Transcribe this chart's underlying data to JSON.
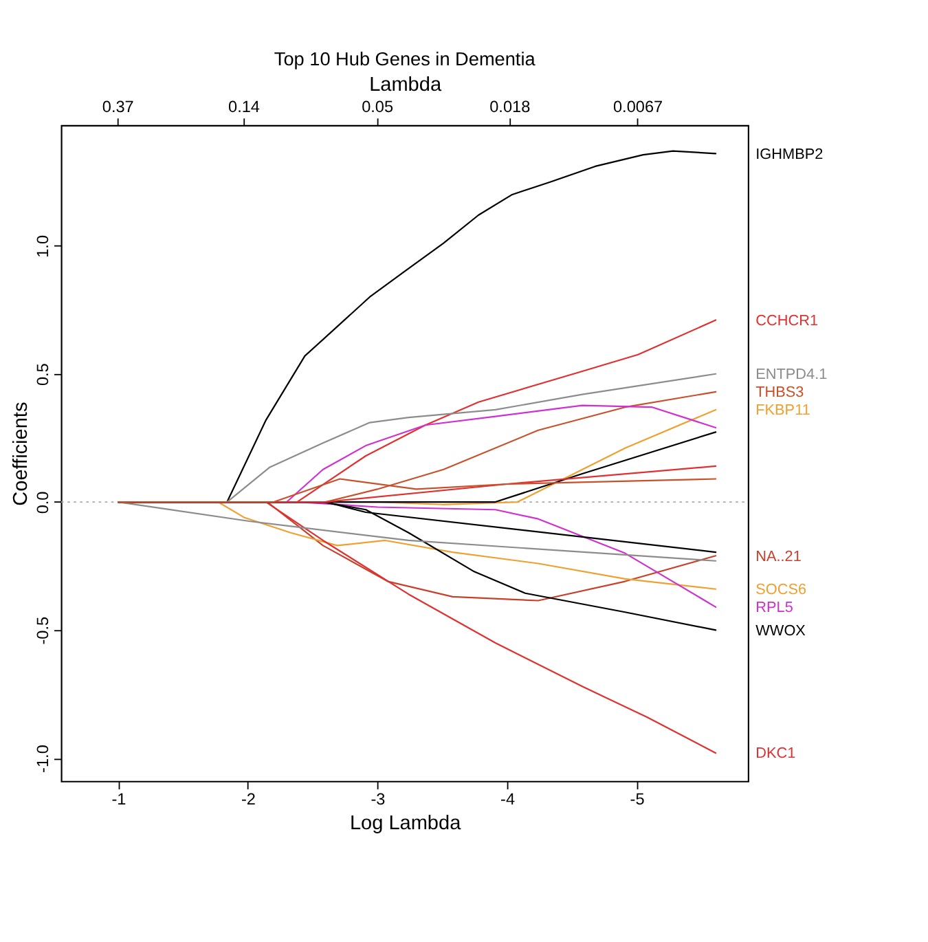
{
  "chart_data": {
    "type": "line",
    "title": "Top 10 Hub Genes in Dementia",
    "xlabel": "Log Lambda",
    "ylabel": "Coefficients",
    "x2label": "Lambda",
    "xlim": [
      -0.56,
      -5.86
    ],
    "xticks": [
      -1,
      -2,
      -3,
      -4,
      -5
    ],
    "x2lim": [
      0.571,
      0.00285
    ],
    "x2ticks": [
      0.37,
      0.14,
      0.05,
      0.018,
      0.0067
    ],
    "log": "x2",
    "ylim": [
      -1.09,
      1.47
    ],
    "yticks": [
      {
        "value": -1,
        "label": "-1.0"
      },
      {
        "value": -0.5,
        "label": "-0.5"
      },
      {
        "value": 0,
        "label": "0.0"
      },
      {
        "value": 0.5,
        "label": "0.5"
      },
      {
        "value": 1,
        "label": "1.0"
      }
    ],
    "grid": false,
    "legend": false,
    "ref_lines": [
      {
        "axis": "y",
        "value": 0,
        "color": "#aaaaaa",
        "line_style": "dotted"
      }
    ],
    "series": [
      {
        "name": "IGHMBP2",
        "color": "#000000",
        "x": [
          -1.0,
          -1.84,
          -2.14,
          -2.44,
          -2.68,
          -2.94,
          -3.21,
          -3.51,
          -3.78,
          -4.04,
          -4.34,
          -4.68,
          -5.05,
          -5.28,
          -5.61
        ],
        "values": [
          0,
          0,
          0.32,
          0.57,
          0.68,
          0.8,
          0.9,
          1.01,
          1.12,
          1.2,
          1.25,
          1.31,
          1.355,
          1.37,
          1.36
        ]
      },
      {
        "name": "CCHCR1",
        "color": "#e03030",
        "x": [
          -1.0,
          -2.38,
          -2.91,
          -3.37,
          -3.78,
          -4.58,
          -5.01,
          -5.61
        ],
        "values": [
          0,
          0,
          0.18,
          0.3,
          0.39,
          0.51,
          0.575,
          0.71
        ]
      },
      {
        "name": "ENTPD4.1",
        "color": "#8c8c8c",
        "x": [
          -1.0,
          -1.84,
          -2.17,
          -2.58,
          -2.94,
          -3.24,
          -3.91,
          -4.58,
          -5.61
        ],
        "values": [
          0,
          0,
          0.136,
          0.23,
          0.31,
          0.33,
          0.36,
          0.42,
          0.5
        ]
      },
      {
        "name": "THBS3",
        "color": "#c8502a",
        "x": [
          -1.0,
          -2.6,
          -3.0,
          -3.51,
          -4.24,
          -4.91,
          -5.61
        ],
        "values": [
          0,
          0,
          0.05,
          0.127,
          0.28,
          0.37,
          0.43
        ]
      },
      {
        "name": "FKBP11",
        "color": "#f0a030",
        "x": [
          -1.0,
          -3.0,
          -3.5,
          -4.08,
          -4.91,
          -5.61
        ],
        "values": [
          0,
          0,
          -0.01,
          0,
          0.21,
          0.36
        ]
      },
      {
        "name": "NA..21",
        "color": "#c8402a",
        "x": [
          -1.0,
          -2.15,
          -2.58,
          -3.08,
          -3.58,
          -4.24,
          -4.91,
          -5.61
        ],
        "values": [
          0,
          0,
          -0.17,
          -0.31,
          -0.37,
          -0.385,
          -0.31,
          -0.21
        ]
      },
      {
        "name": "SOCS6",
        "color": "#f0a030",
        "x": [
          -1.0,
          -1.77,
          -1.97,
          -2.33,
          -2.69,
          -3.06,
          -3.58,
          -4.24,
          -4.91,
          -5.61
        ],
        "values": [
          0,
          0,
          -0.06,
          -0.12,
          -0.17,
          -0.15,
          -0.196,
          -0.24,
          -0.3,
          -0.34
        ]
      },
      {
        "name": "RPL5",
        "color": "#d030d0",
        "x": [
          -1.0,
          -2.4,
          -3.0,
          -3.91,
          -4.24,
          -4.91,
          -5.61
        ],
        "values": [
          0,
          0,
          -0.02,
          -0.03,
          -0.066,
          -0.2,
          -0.41
        ]
      },
      {
        "name": "WWOX",
        "color": "#000000",
        "x": [
          -1.0,
          -2.58,
          -2.91,
          -3.24,
          -3.74,
          -4.14,
          -4.91,
          -5.61
        ],
        "values": [
          0,
          0,
          -0.03,
          -0.12,
          -0.27,
          -0.356,
          -0.43,
          -0.5
        ]
      },
      {
        "name": "DKC1",
        "color": "#e03030",
        "x": [
          -1.0,
          -2.14,
          -2.58,
          -3.24,
          -3.91,
          -4.58,
          -5.08,
          -5.61
        ],
        "values": [
          0,
          0,
          -0.15,
          -0.36,
          -0.55,
          -0.72,
          -0.84,
          -0.98
        ]
      },
      {
        "color": "#d030d0",
        "x": [
          -1.0,
          -2.3,
          -2.58,
          -2.91,
          -3.37,
          -3.91,
          -4.58,
          -5.12,
          -5.61
        ],
        "values": [
          0,
          0,
          0.127,
          0.22,
          0.3,
          0.334,
          0.377,
          0.37,
          0.29
        ]
      },
      {
        "color": "#000000",
        "x": [
          -1.0,
          -3.91,
          -4.58,
          -5.61
        ],
        "values": [
          0,
          0,
          0.11,
          0.273
        ]
      },
      {
        "color": "#8c8c8c",
        "x": [
          -1.0,
          -2.01,
          -3.24,
          -5.61
        ],
        "values": [
          0,
          -0.075,
          -0.15,
          -0.23
        ]
      },
      {
        "color": "#000000",
        "x": [
          -1.0,
          -2.6,
          -2.91,
          -5.61
        ],
        "values": [
          0,
          0,
          -0.04,
          -0.196
        ]
      },
      {
        "color": "#e03030",
        "x": [
          -1.0,
          -2.6,
          -4.0,
          -5.61
        ],
        "values": [
          0,
          0,
          0.07,
          0.14
        ]
      },
      {
        "color": "#c8502a",
        "x": [
          -1.0,
          -2.2,
          -2.71,
          -3.3,
          -4.0,
          -5.61
        ],
        "values": [
          0,
          0,
          0.09,
          0.05,
          0.07,
          0.09
        ]
      }
    ]
  }
}
